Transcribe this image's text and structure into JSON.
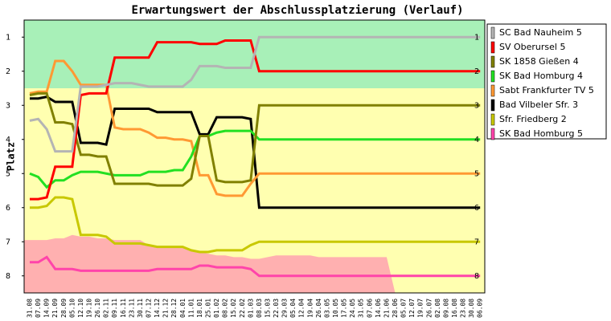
{
  "chart_data": {
    "type": "line",
    "title": "Erwartungswert der Abschlussplatzierung (Verlauf)",
    "y_label": "Platz",
    "categories": [
      "31.08",
      "07.09",
      "14.09",
      "21.09",
      "28.09",
      "05.10",
      "12.10",
      "19.10",
      "26.10",
      "02.11",
      "09.11",
      "16.11",
      "23.11",
      "30.11",
      "07.12",
      "14.12",
      "21.12",
      "28.12",
      "04.01",
      "11.01",
      "18.01",
      "25.01",
      "01.02",
      "08.02",
      "15.02",
      "22.02",
      "01.03",
      "08.03",
      "15.03",
      "22.03",
      "29.03",
      "05.04",
      "12.04",
      "19.04",
      "26.04",
      "03.05",
      "10.05",
      "17.05",
      "24.05",
      "31.05",
      "07.06",
      "14.06",
      "21.06",
      "28.06",
      "05.07",
      "12.07",
      "19.07",
      "26.07",
      "02.08",
      "09.08",
      "16.08",
      "23.08",
      "30.08",
      "06.09"
    ],
    "ylim": [
      0.5,
      8.5
    ],
    "y_inverted": true,
    "yticks": [
      1,
      2,
      3,
      4,
      5,
      6,
      7,
      8
    ],
    "zones": [
      {
        "color": "#a8f0b8",
        "top": 0.5,
        "bottom": 2.5
      },
      {
        "color": "#ffffb0",
        "top": 2.5,
        "bottom": 8.5
      },
      {
        "color": "#ffb0b0",
        "bottom": 8.5,
        "top": [
          6.95,
          6.95,
          6.95,
          6.9,
          6.9,
          6.8,
          6.85,
          6.85,
          6.9,
          6.9,
          6.95,
          6.95,
          6.95,
          6.95,
          7.1,
          7.15,
          7.15,
          7.15,
          7.15,
          7.25,
          7.3,
          7.35,
          7.4,
          7.4,
          7.45,
          7.45,
          7.5,
          7.5,
          7.45,
          7.4,
          7.4,
          7.4,
          7.4,
          7.4,
          7.45,
          7.45,
          7.45,
          7.45,
          7.45,
          7.45,
          7.45,
          7.45,
          7.45,
          8.5,
          null,
          null,
          null,
          null,
          null,
          null,
          null,
          null,
          null,
          null
        ]
      }
    ],
    "series": [
      {
        "name": "SC Bad Nauheim 5",
        "color": "#b4b4b4",
        "values": [
          3.45,
          3.4,
          3.7,
          4.35,
          4.35,
          4.35,
          2.45,
          2.45,
          2.45,
          2.4,
          2.35,
          2.35,
          2.35,
          2.4,
          2.45,
          2.45,
          2.45,
          2.45,
          2.45,
          2.25,
          1.85,
          1.85,
          1.85,
          1.9,
          1.9,
          1.9,
          1.9,
          1,
          1,
          1,
          1,
          1,
          1,
          1,
          1,
          1,
          1,
          1,
          1,
          1,
          1,
          1,
          1,
          1,
          1,
          1,
          1,
          1,
          1,
          1,
          1,
          1,
          1,
          1
        ]
      },
      {
        "name": "SV Oberursel 5",
        "color": "#ff0000",
        "values": [
          5.75,
          5.75,
          5.7,
          4.8,
          4.8,
          4.8,
          2.7,
          2.65,
          2.65,
          2.65,
          1.6,
          1.6,
          1.6,
          1.6,
          1.6,
          1.15,
          1.15,
          1.15,
          1.15,
          1.15,
          1.2,
          1.2,
          1.2,
          1.1,
          1.1,
          1.1,
          1.1,
          2,
          2,
          2,
          2,
          2,
          2,
          2,
          2,
          2,
          2,
          2,
          2,
          2,
          2,
          2,
          2,
          2,
          2,
          2,
          2,
          2,
          2,
          2,
          2,
          2,
          2,
          2
        ]
      },
      {
        "name": "SK 1858 Gießen 4",
        "color": "#808000",
        "values": [
          2.7,
          2.65,
          2.65,
          3.5,
          3.5,
          3.55,
          4.45,
          4.45,
          4.5,
          4.5,
          5.3,
          5.3,
          5.3,
          5.3,
          5.3,
          5.35,
          5.35,
          5.35,
          5.35,
          5.15,
          3.9,
          3.9,
          5.2,
          5.25,
          5.25,
          5.25,
          5.2,
          3,
          3,
          3,
          3,
          3,
          3,
          3,
          3,
          3,
          3,
          3,
          3,
          3,
          3,
          3,
          3,
          3,
          3,
          3,
          3,
          3,
          3,
          3,
          3,
          3,
          3,
          3
        ]
      },
      {
        "name": "SK Bad Homburg 4",
        "color": "#22e022",
        "values": [
          5,
          5.1,
          5.4,
          5.2,
          5.2,
          5.05,
          4.95,
          4.95,
          4.95,
          5,
          5.05,
          5.05,
          5.05,
          5.05,
          4.95,
          4.95,
          4.95,
          4.9,
          4.9,
          4.5,
          3.9,
          3.9,
          3.8,
          3.75,
          3.75,
          3.75,
          3.75,
          4,
          4,
          4,
          4,
          4,
          4,
          4,
          4,
          4,
          4,
          4,
          4,
          4,
          4,
          4,
          4,
          4,
          4,
          4,
          4,
          4,
          4,
          4,
          4,
          4,
          4,
          4
        ]
      },
      {
        "name": "Sabt Frankfurter TV 5",
        "color": "#ff9933",
        "values": [
          2.65,
          2.6,
          2.6,
          1.7,
          1.7,
          2,
          2.4,
          2.4,
          2.4,
          2.4,
          3.65,
          3.7,
          3.7,
          3.7,
          3.8,
          3.95,
          3.95,
          4,
          4,
          4.05,
          5.05,
          5.05,
          5.6,
          5.65,
          5.65,
          5.65,
          5.3,
          5,
          5,
          5,
          5,
          5,
          5,
          5,
          5,
          5,
          5,
          5,
          5,
          5,
          5,
          5,
          5,
          5,
          5,
          5,
          5,
          5,
          5,
          5,
          5,
          5,
          5,
          5
        ]
      },
      {
        "name": "Bad Vilbeler Sfr. 3",
        "color": "#000000",
        "values": [
          2.8,
          2.8,
          2.75,
          2.9,
          2.9,
          2.9,
          4.1,
          4.1,
          4.1,
          4.15,
          3.1,
          3.1,
          3.1,
          3.1,
          3.1,
          3.2,
          3.2,
          3.2,
          3.2,
          3.2,
          3.85,
          3.85,
          3.35,
          3.35,
          3.35,
          3.35,
          3.4,
          6,
          6,
          6,
          6,
          6,
          6,
          6,
          6,
          6,
          6,
          6,
          6,
          6,
          6,
          6,
          6,
          6,
          6,
          6,
          6,
          6,
          6,
          6,
          6,
          6,
          6,
          6
        ]
      },
      {
        "name": "Sfr. Friedberg 2",
        "color": "#c8c800",
        "values": [
          6,
          6,
          5.95,
          5.7,
          5.7,
          5.75,
          6.8,
          6.8,
          6.8,
          6.85,
          7.05,
          7.05,
          7.05,
          7.05,
          7.1,
          7.15,
          7.15,
          7.15,
          7.15,
          7.25,
          7.3,
          7.3,
          7.25,
          7.25,
          7.25,
          7.25,
          7.1,
          7,
          7,
          7,
          7,
          7,
          7,
          7,
          7,
          7,
          7,
          7,
          7,
          7,
          7,
          7,
          7,
          7,
          7,
          7,
          7,
          7,
          7,
          7,
          7,
          7,
          7,
          7
        ]
      },
      {
        "name": "SK Bad Homburg 5",
        "color": "#ff44aa",
        "values": [
          7.6,
          7.6,
          7.45,
          7.8,
          7.8,
          7.8,
          7.85,
          7.85,
          7.85,
          7.85,
          7.85,
          7.85,
          7.85,
          7.85,
          7.85,
          7.8,
          7.8,
          7.8,
          7.8,
          7.8,
          7.7,
          7.7,
          7.75,
          7.75,
          7.75,
          7.75,
          7.8,
          8,
          8,
          8,
          8,
          8,
          8,
          8,
          8,
          8,
          8,
          8,
          8,
          8,
          8,
          8,
          8,
          8,
          8,
          8,
          8,
          8,
          8,
          8,
          8,
          8,
          8,
          8
        ]
      }
    ]
  }
}
